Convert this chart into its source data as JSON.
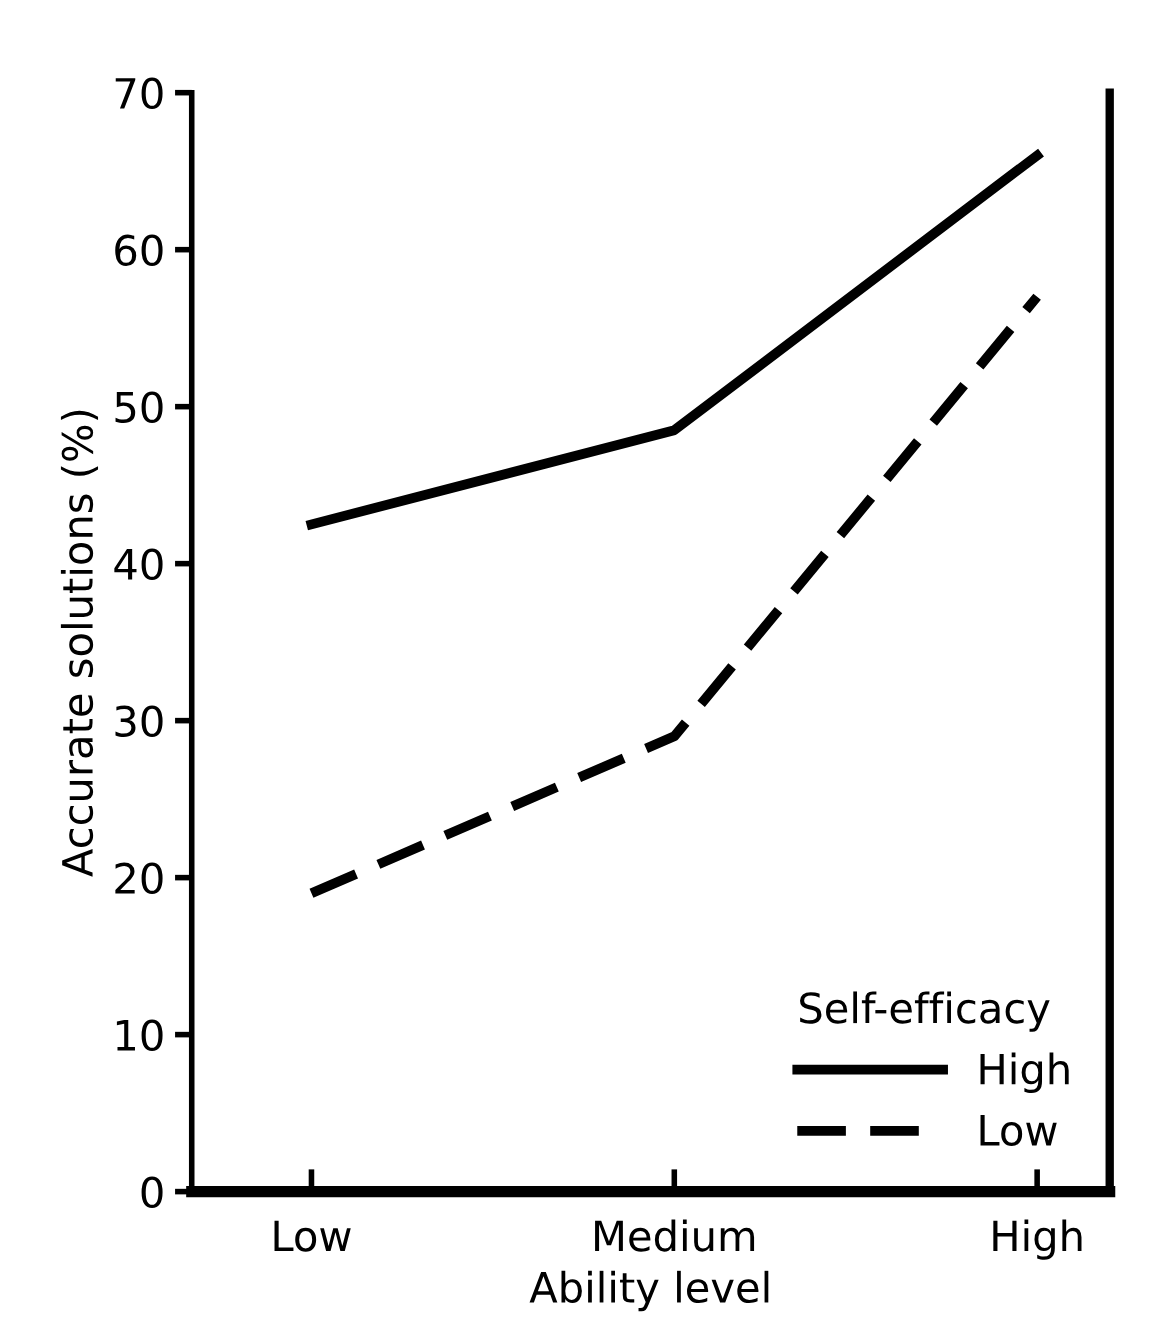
{
  "chart_data": {
    "type": "line",
    "xlabel": "Ability level",
    "ylabel": "Accurate solutions (%)",
    "legend_title": "Self-efficacy",
    "categories": [
      "Low",
      "Medium",
      "High"
    ],
    "series": [
      {
        "name": "High",
        "color": "#000000",
        "values": [
          42.5,
          48.5,
          66
        ],
        "line_style": "solid"
      },
      {
        "name": "Low",
        "color": "#000000",
        "values": [
          19,
          29,
          57
        ],
        "line_style": "dashed"
      }
    ],
    "ylim": [
      0,
      70
    ],
    "yticks": [
      0,
      10,
      20,
      30,
      40,
      50,
      60,
      70
    ],
    "grid": false,
    "legend": "bottom right",
    "marker": "none"
  }
}
